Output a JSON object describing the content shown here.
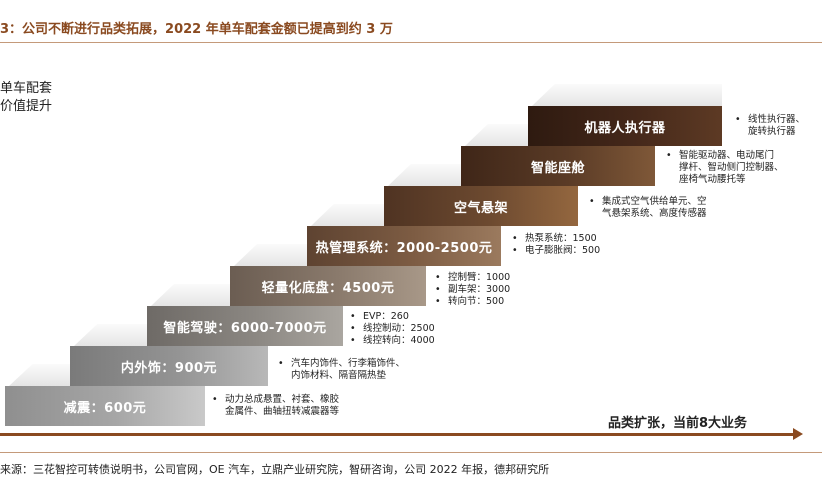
{
  "header": {
    "title": "3：公司不断进行品类拓展，2022 年单车配套金额已提高到约 3 万",
    "side_note_line1": "单车配套",
    "side_note_line2": "价值提升"
  },
  "steps": [
    {
      "label": "减震：600元",
      "bullets": [
        "动力总成悬置、衬套、橡胶",
        "金属件、曲轴扭转减震器等"
      ],
      "bullet_style": "multi"
    },
    {
      "label": "内外饰：900元",
      "bullets": [
        "汽车内饰件、行李箱饰件、",
        "内饰材料、隔音隔热垫"
      ],
      "bullet_style": "multi"
    },
    {
      "label": "智能驾驶：6000-7000元",
      "bullets": [
        "EVP：260",
        "线控制动：2500",
        "线控转向：4000"
      ],
      "bullet_style": "each"
    },
    {
      "label": "轻量化底盘：4500元",
      "bullets": [
        "控制臂：1000",
        "副车架：3000",
        "转向节：500"
      ],
      "bullet_style": "each"
    },
    {
      "label": "热管理系统：2000-2500元",
      "bullets": [
        "热泵系统：1500",
        "电子膨胀阀：500"
      ],
      "bullet_style": "each"
    },
    {
      "label": "空气悬架",
      "bullets": [
        "集成式空气供给单元、空",
        "气悬架系统、高度传感器"
      ],
      "bullet_style": "multi"
    },
    {
      "label": "智能座舱",
      "bullets": [
        "智能驱动器、电动尾门",
        "撑杆、智动侧门控制器、",
        "座椅气动腰托等"
      ],
      "bullet_style": "multi"
    },
    {
      "label": "机器人执行器",
      "bullets": [
        "线性执行器、",
        "旋转执行器"
      ],
      "bullet_style": "multi"
    }
  ],
  "arrow": {
    "label": "品类扩张，当前8大业务"
  },
  "footer": {
    "source": "来源：三花智控可转债说明书，公司官网，OE 汽车，立鼎产业研究院，智研咨询，公司 2022 年报，德邦研究所"
  }
}
